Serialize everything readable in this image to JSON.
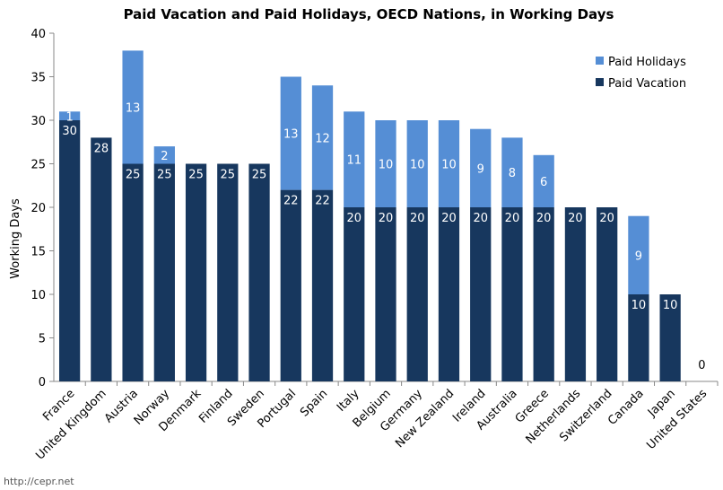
{
  "chart_data": {
    "type": "bar",
    "stacked": true,
    "title": "Paid Vacation and Paid Holidays, OECD Nations, in Working Days",
    "xlabel": "",
    "ylabel": "Working Days",
    "ylim": [
      0,
      40
    ],
    "yticks": [
      0,
      5,
      10,
      15,
      20,
      25,
      30,
      35,
      40
    ],
    "grid": false,
    "legend_position": "top-right",
    "categories": [
      "France",
      "United Kingdom",
      "Austria",
      "Norway",
      "Denmark",
      "Finland",
      "Sweden",
      "Portugal",
      "Spain",
      "Italy",
      "Belgium",
      "Germany",
      "New Zealand",
      "Ireland",
      "Australia",
      "Greece",
      "Netherlands",
      "Switzerland",
      "Canada",
      "Japan",
      "United States"
    ],
    "series": [
      {
        "name": "Paid Vacation",
        "color": "#17375e",
        "values": [
          30,
          28,
          25,
          25,
          25,
          25,
          25,
          22,
          22,
          20,
          20,
          20,
          20,
          20,
          20,
          20,
          20,
          20,
          10,
          10,
          0
        ]
      },
      {
        "name": "Paid Holidays",
        "color": "#558ed5",
        "values": [
          1,
          0,
          13,
          2,
          0,
          0,
          0,
          13,
          12,
          11,
          10,
          10,
          10,
          9,
          8,
          6,
          0,
          0,
          9,
          0,
          0
        ]
      }
    ],
    "source": "http://cepr.net"
  }
}
